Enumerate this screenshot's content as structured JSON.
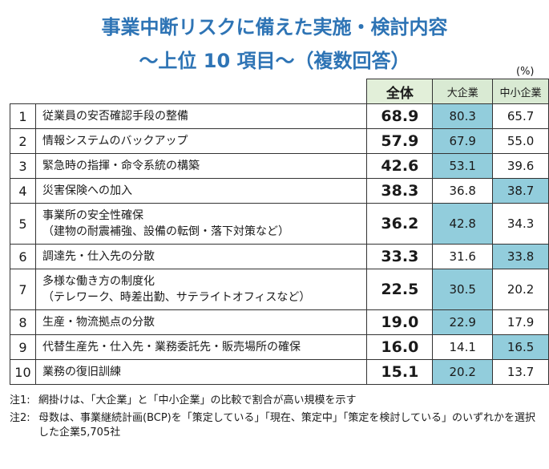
{
  "title_line1": "事業中断リスクに備えた実施・検討内容",
  "title_line2": "～上位 10 項目～（複数回答）",
  "unit": "(%)",
  "headers": {
    "total": "全体",
    "large": "大企業",
    "sme": "中小企業"
  },
  "rows": [
    {
      "rank": "1",
      "label": "従業員の安否確認手段の整備",
      "sub": "",
      "total": "68.9",
      "large": "80.3",
      "sme": "65.7",
      "highlight": "large"
    },
    {
      "rank": "2",
      "label": "情報システムのバックアップ",
      "sub": "",
      "total": "57.9",
      "large": "67.9",
      "sme": "55.0",
      "highlight": "large"
    },
    {
      "rank": "3",
      "label": "緊急時の指揮・命令系統の構築",
      "sub": "",
      "total": "42.6",
      "large": "53.1",
      "sme": "39.6",
      "highlight": "large"
    },
    {
      "rank": "4",
      "label": "災害保険への加入",
      "sub": "",
      "total": "38.3",
      "large": "36.8",
      "sme": "38.7",
      "highlight": "sme"
    },
    {
      "rank": "5",
      "label": "事業所の安全性確保",
      "sub": "（建物の耐震補強、設備の転倒・落下対策など）",
      "total": "36.2",
      "large": "42.8",
      "sme": "34.3",
      "highlight": "large"
    },
    {
      "rank": "6",
      "label": "調達先・仕入先の分散",
      "sub": "",
      "total": "33.3",
      "large": "31.6",
      "sme": "33.8",
      "highlight": "sme"
    },
    {
      "rank": "7",
      "label": "多様な働き方の制度化",
      "sub": "（テレワーク、時差出勤、サテライトオフィスなど）",
      "total": "22.5",
      "large": "30.5",
      "sme": "20.2",
      "highlight": "large"
    },
    {
      "rank": "8",
      "label": "生産・物流拠点の分散",
      "sub": "",
      "total": "19.0",
      "large": "22.9",
      "sme": "17.9",
      "highlight": "large"
    },
    {
      "rank": "9",
      "label": "代替生産先・仕入先・業務委託先・販売場所の確保",
      "sub": "",
      "total": "16.0",
      "large": "14.1",
      "sme": "16.5",
      "highlight": "sme"
    },
    {
      "rank": "10",
      "label": "業務の復旧訓練",
      "sub": "",
      "total": "15.1",
      "large": "20.2",
      "sme": "13.7",
      "highlight": "large"
    }
  ],
  "notes": [
    {
      "tag": "注1:",
      "text": "網掛けは、「大企業」と「中小企業」の比較で割合が高い規模を示す"
    },
    {
      "tag": "注2:",
      "text": "母数は、事業継続計画(BCP)を「策定している」「現在、策定中」「策定を検討している」のいずれかを選択した企業5,705社"
    }
  ]
}
